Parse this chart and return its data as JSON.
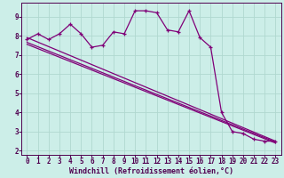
{
  "xlabel": "Windchill (Refroidissement éolien,°C)",
  "bg_color": "#cceee8",
  "line_color": "#800078",
  "grid_color": "#b0d8d0",
  "xlim": [
    -0.5,
    23.5
  ],
  "ylim": [
    1.8,
    9.7
  ],
  "yticks": [
    2,
    3,
    4,
    5,
    6,
    7,
    8,
    9
  ],
  "xticks": [
    0,
    1,
    2,
    3,
    4,
    5,
    6,
    7,
    8,
    9,
    10,
    11,
    12,
    13,
    14,
    15,
    16,
    17,
    18,
    19,
    20,
    21,
    22,
    23
  ],
  "xtick_labels": [
    "0",
    "1",
    "2",
    "3",
    "4",
    "5",
    "6",
    "7",
    "8",
    "9",
    "10",
    "11",
    "12",
    "13",
    "14",
    "15",
    "16",
    "17",
    "18",
    "19",
    "20",
    "21",
    "22",
    "23"
  ],
  "main_series_x": [
    0,
    1,
    2,
    3,
    4,
    5,
    6,
    7,
    8,
    9,
    10,
    11,
    12,
    13,
    14,
    15,
    16,
    17,
    18,
    19,
    20,
    21,
    22,
    23
  ],
  "main_series_y": [
    7.8,
    8.1,
    7.8,
    8.1,
    8.6,
    8.1,
    7.4,
    7.5,
    8.2,
    8.1,
    9.3,
    9.3,
    9.2,
    8.3,
    8.2,
    9.3,
    7.9,
    7.4,
    4.0,
    3.0,
    2.9,
    2.6,
    2.5,
    2.5
  ],
  "line1_y_start": 7.9,
  "line1_y_end": 2.5,
  "line2_y_start": 7.65,
  "line2_y_end": 2.45,
  "line3_y_start": 7.55,
  "line3_y_end": 2.4
}
